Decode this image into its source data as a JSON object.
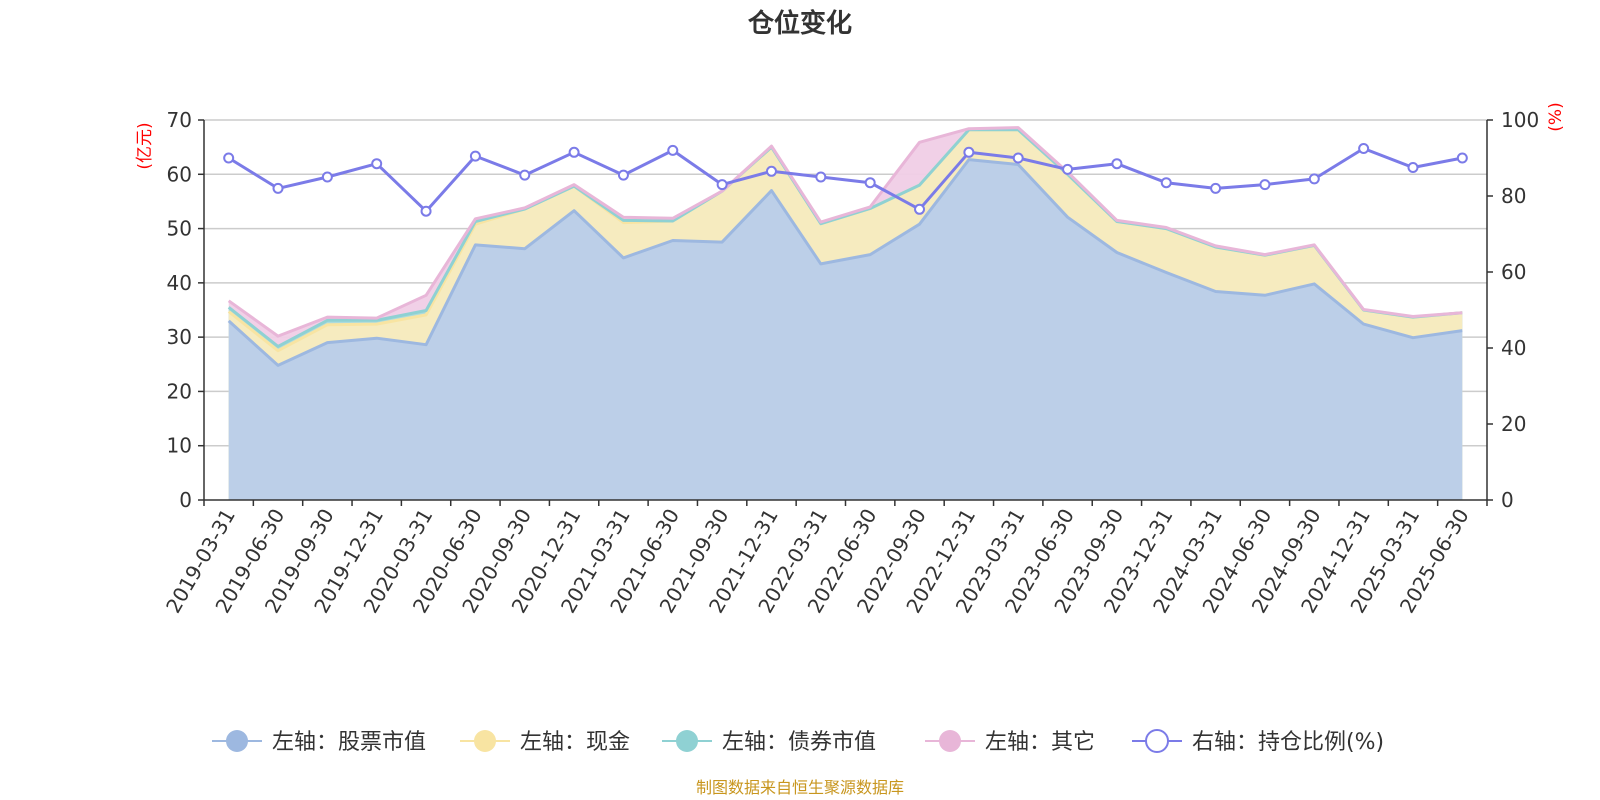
{
  "chart_data": {
    "type": "area",
    "title": "仓位变化",
    "left_axis_unit": "(亿元)",
    "right_axis_unit": "(%)",
    "ylim_left": [
      0,
      70
    ],
    "yticks_left": [
      0,
      10,
      20,
      30,
      40,
      50,
      60,
      70
    ],
    "ylim_right": [
      0,
      100
    ],
    "yticks_right": [
      0,
      20,
      40,
      60,
      80,
      100
    ],
    "grid": true,
    "legend_position": "bottom",
    "x": [
      "2019-03-31",
      "2019-06-30",
      "2019-09-30",
      "2019-12-31",
      "2020-03-31",
      "2020-06-30",
      "2020-09-30",
      "2020-12-31",
      "2021-03-31",
      "2021-06-30",
      "2021-09-30",
      "2021-12-31",
      "2022-03-31",
      "2022-06-30",
      "2022-09-30",
      "2022-12-31",
      "2023-03-31",
      "2023-06-30",
      "2023-09-30",
      "2023-12-31",
      "2024-03-31",
      "2024-06-30",
      "2024-09-30",
      "2024-12-31",
      "2025-03-31",
      "2025-06-30"
    ],
    "series": [
      {
        "name": "左轴：股票市值",
        "axis": "left",
        "stack": true,
        "color": "#9db8e0",
        "fill": "#b8cdea",
        "values": [
          33.0,
          24.8,
          29.0,
          29.8,
          28.6,
          47.0,
          46.3,
          53.3,
          44.6,
          47.8,
          47.5,
          57.0,
          43.5,
          45.2,
          50.8,
          62.7,
          61.8,
          52.1,
          45.6,
          41.9,
          38.4,
          37.7,
          39.8,
          32.4,
          29.9,
          31.2
        ]
      },
      {
        "name": "左轴：现金",
        "axis": "left",
        "stack": true,
        "color": "#f8e4a2",
        "fill": "#faecbd",
        "values": [
          1.7,
          2.7,
          3.3,
          2.6,
          5.5,
          3.8,
          7.3,
          4.5,
          6.5,
          3.6,
          9.4,
          8.0,
          7.4,
          8.5,
          7.2,
          5.5,
          6.4,
          7.9,
          5.7,
          8.1,
          8.2,
          7.4,
          7.1,
          2.6,
          3.8,
          3.3
        ]
      },
      {
        "name": "左轴：债券市值",
        "axis": "left",
        "stack": true,
        "color": "#8fd1d3",
        "fill": "#a8dbdc",
        "values": [
          0.8,
          0.8,
          0.8,
          0.7,
          0.8,
          0.5,
          0.0,
          0.0,
          0.4,
          0.0,
          0.0,
          0.0,
          0.0,
          0.0,
          0.0,
          0.0,
          0.0,
          0.0,
          0.0,
          0.0,
          0.0,
          0.0,
          0.0,
          0.0,
          0.0,
          0.0
        ]
      },
      {
        "name": "左轴：其它",
        "axis": "left",
        "stack": true,
        "color": "#e8b6d8",
        "fill": "#f0cde6",
        "values": [
          1.2,
          1.9,
          0.6,
          0.4,
          2.8,
          0.5,
          0.2,
          0.3,
          0.6,
          0.5,
          0.0,
          0.2,
          0.3,
          0.3,
          7.9,
          0.2,
          0.4,
          0.4,
          0.2,
          0.2,
          0.2,
          0.1,
          0.1,
          0.1,
          0.1,
          0.0
        ]
      },
      {
        "name": "右轴：持仓比例(%)",
        "axis": "right",
        "stack": false,
        "color": "#7b7be8",
        "values": [
          90.0,
          82.0,
          85.0,
          88.5,
          76.0,
          90.5,
          85.5,
          91.5,
          85.5,
          92.0,
          83.0,
          86.5,
          85.0,
          83.5,
          76.5,
          91.5,
          90.0,
          87.0,
          88.5,
          83.5,
          82.0,
          83.0,
          84.5,
          92.5,
          87.5,
          90.0
        ]
      }
    ]
  },
  "footer": {
    "source_text": "制图数据来自恒生聚源数据库"
  }
}
